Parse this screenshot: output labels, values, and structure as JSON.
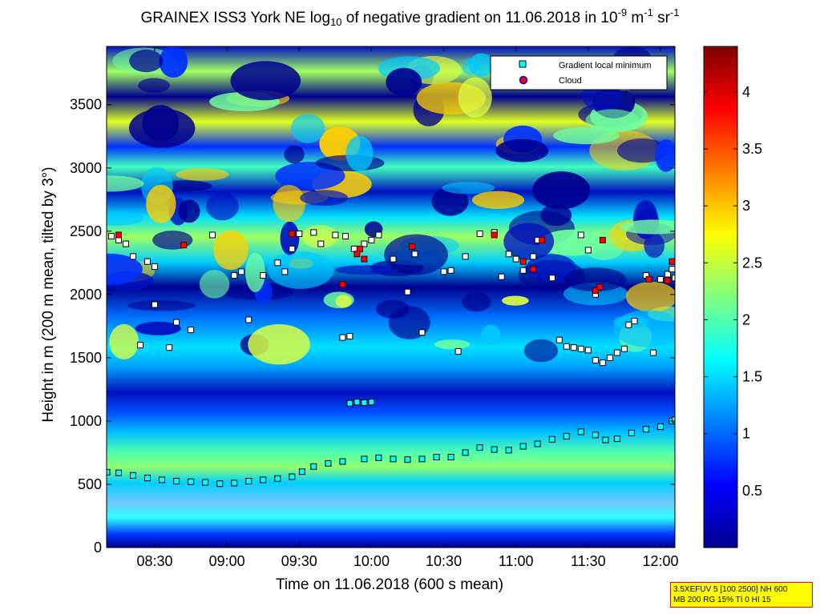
{
  "title": {
    "prefix": "GRAINEX ISS3 York NE log",
    "log_base": "10",
    "middle": " of negative gradient on 11.06.2018 in 10",
    "exp1": "-9",
    "unit1": " m",
    "exp2": "-1",
    "unit2": " sr",
    "exp3": "-1"
  },
  "info_box": {
    "line1": "3.5XEFUV 5 [100 2500] NH 600",
    "line2": "MB 200 RG 15% TI 0 HI 15"
  },
  "colors": {
    "background_low": "#00008f",
    "gradient_min_marker": "#00ffff",
    "cloud_marker": "#ff0000",
    "cloud_marker_edge": "#0000ff"
  },
  "chart_data": {
    "type": "heatmap",
    "xlabel": "Time on 11.06.2018 (600 s mean)",
    "ylabel": "Height in m (200 m mean, tilted by 3°)",
    "x_range_hours": [
      8.167,
      12.1
    ],
    "ylim": [
      0,
      3960
    ],
    "x_ticks": [
      {
        "label": "08:30",
        "hour": 8.5
      },
      {
        "label": "09:00",
        "hour": 9.0
      },
      {
        "label": "09:30",
        "hour": 9.5
      },
      {
        "label": "10:00",
        "hour": 10.0
      },
      {
        "label": "10:30",
        "hour": 10.5
      },
      {
        "label": "11:00",
        "hour": 11.0
      },
      {
        "label": "11:30",
        "hour": 11.5
      },
      {
        "label": "12:00",
        "hour": 12.0
      }
    ],
    "y_ticks": [
      0,
      500,
      1000,
      1500,
      2000,
      2500,
      3000,
      3500
    ],
    "colorbar": {
      "range": [
        0,
        4.4
      ],
      "ticks": [
        "0.5",
        "1",
        "1.5",
        "2",
        "2.5",
        "3",
        "3.5",
        "4"
      ],
      "colormap": "jet"
    },
    "legend": {
      "placement": "top-right",
      "entries": [
        "Gradient local minimum",
        "Cloud"
      ]
    },
    "gradient_local_minimum": [
      [
        8.17,
        595
      ],
      [
        8.25,
        590
      ],
      [
        8.35,
        570
      ],
      [
        8.45,
        550
      ],
      [
        8.55,
        535
      ],
      [
        8.65,
        525
      ],
      [
        8.75,
        520
      ],
      [
        8.85,
        515
      ],
      [
        8.95,
        505
      ],
      [
        9.05,
        510
      ],
      [
        9.15,
        525
      ],
      [
        9.25,
        535
      ],
      [
        9.35,
        545
      ],
      [
        9.45,
        560
      ],
      [
        9.52,
        600
      ],
      [
        9.6,
        640
      ],
      [
        9.7,
        665
      ],
      [
        9.8,
        680
      ],
      [
        9.95,
        700
      ],
      [
        10.05,
        710
      ],
      [
        10.15,
        700
      ],
      [
        10.25,
        695
      ],
      [
        10.35,
        700
      ],
      [
        10.45,
        715
      ],
      [
        10.55,
        715
      ],
      [
        10.65,
        750
      ],
      [
        10.75,
        790
      ],
      [
        10.85,
        775
      ],
      [
        10.95,
        770
      ],
      [
        11.05,
        800
      ],
      [
        11.15,
        820
      ],
      [
        11.25,
        855
      ],
      [
        11.35,
        880
      ],
      [
        11.45,
        915
      ],
      [
        11.55,
        890
      ],
      [
        11.62,
        850
      ],
      [
        11.7,
        860
      ],
      [
        11.8,
        905
      ],
      [
        11.9,
        935
      ],
      [
        12.0,
        955
      ],
      [
        12.08,
        1000
      ],
      [
        12.1,
        1010
      ],
      [
        9.85,
        1140
      ],
      [
        9.9,
        1150
      ],
      [
        9.95,
        1145
      ],
      [
        10.0,
        1150
      ],
      [
        9.8,
        1660
      ],
      [
        9.85,
        1670
      ],
      [
        8.2,
        2460
      ],
      [
        8.25,
        2430
      ],
      [
        8.3,
        2400
      ],
      [
        8.35,
        2300
      ],
      [
        8.45,
        2260
      ],
      [
        8.5,
        2220
      ],
      [
        8.4,
        1600
      ],
      [
        8.6,
        1580
      ],
      [
        8.65,
        1780
      ],
      [
        8.75,
        1720
      ],
      [
        8.5,
        1920
      ],
      [
        8.9,
        2470
      ],
      [
        9.05,
        2150
      ],
      [
        9.1,
        2180
      ],
      [
        9.15,
        1800
      ],
      [
        9.25,
        2150
      ],
      [
        9.35,
        2250
      ],
      [
        9.4,
        2180
      ],
      [
        9.45,
        2360
      ],
      [
        9.5,
        2480
      ],
      [
        9.6,
        2490
      ],
      [
        9.65,
        2400
      ],
      [
        9.75,
        2470
      ],
      [
        9.82,
        2460
      ],
      [
        9.88,
        2360
      ],
      [
        9.95,
        2400
      ],
      [
        10.0,
        2430
      ],
      [
        10.05,
        2470
      ],
      [
        10.15,
        2280
      ],
      [
        10.25,
        2020
      ],
      [
        10.3,
        2320
      ],
      [
        10.35,
        1700
      ],
      [
        10.5,
        2180
      ],
      [
        10.55,
        2190
      ],
      [
        10.6,
        1550
      ],
      [
        10.65,
        2300
      ],
      [
        10.75,
        2480
      ],
      [
        10.85,
        2490
      ],
      [
        10.9,
        2140
      ],
      [
        10.95,
        2320
      ],
      [
        11.0,
        2280
      ],
      [
        11.05,
        2190
      ],
      [
        11.12,
        2300
      ],
      [
        11.15,
        2430
      ],
      [
        11.25,
        2130
      ],
      [
        11.3,
        1640
      ],
      [
        11.35,
        1590
      ],
      [
        11.4,
        1580
      ],
      [
        11.45,
        1570
      ],
      [
        11.5,
        1560
      ],
      [
        11.55,
        1480
      ],
      [
        11.6,
        1460
      ],
      [
        11.65,
        1500
      ],
      [
        11.7,
        1540
      ],
      [
        11.75,
        1570
      ],
      [
        11.45,
        2470
      ],
      [
        11.5,
        2350
      ],
      [
        11.55,
        2000
      ],
      [
        11.78,
        1760
      ],
      [
        11.82,
        1790
      ],
      [
        11.9,
        2150
      ],
      [
        11.95,
        1540
      ],
      [
        12.0,
        2120
      ],
      [
        12.05,
        2160
      ],
      [
        12.08,
        2200
      ],
      [
        12.1,
        2130
      ]
    ],
    "cloud": [
      [
        8.25,
        2470
      ],
      [
        8.7,
        2390
      ],
      [
        9.45,
        2480
      ],
      [
        9.8,
        2080
      ],
      [
        9.9,
        2320
      ],
      [
        9.92,
        2360
      ],
      [
        9.95,
        2280
      ],
      [
        10.28,
        2380
      ],
      [
        10.85,
        2470
      ],
      [
        11.05,
        2260
      ],
      [
        11.12,
        2200
      ],
      [
        11.18,
        2430
      ],
      [
        11.55,
        2030
      ],
      [
        11.58,
        2060
      ],
      [
        11.6,
        2430
      ],
      [
        11.92,
        2120
      ],
      [
        12.05,
        2110
      ],
      [
        12.08,
        2260
      ]
    ]
  }
}
